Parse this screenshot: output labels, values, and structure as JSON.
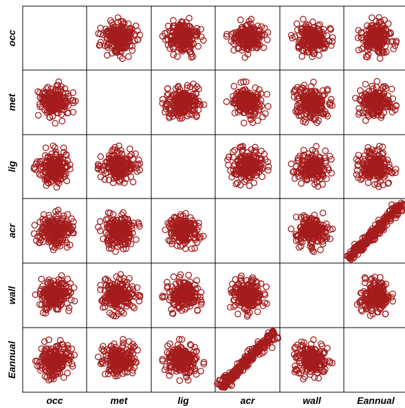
{
  "chart_data": {
    "type": "scatter",
    "title": "",
    "variables": [
      "occ",
      "met",
      "lig",
      "acr",
      "wall",
      "Eannual"
    ],
    "diagonal": "empty",
    "point_color": "#a51c1c",
    "marker": "open-circle",
    "correlated_pairs": [
      {
        "pair": [
          "acr",
          "Eannual"
        ],
        "relationship": "strong positive linear"
      }
    ],
    "other_pairs": "uncorrelated circular clouds",
    "grid": false
  }
}
